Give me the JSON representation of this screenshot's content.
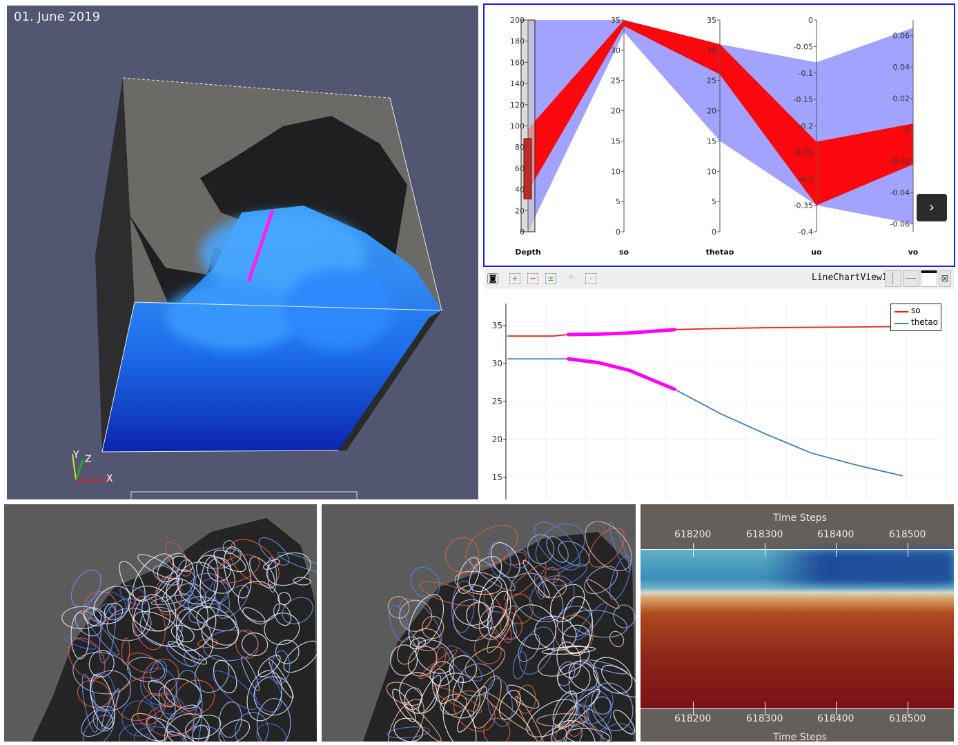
{
  "view3d": {
    "title": "01. June 2019",
    "axes_labels": {
      "x": "X",
      "y": "Y",
      "z": "Z"
    }
  },
  "parallel_coordinates": {
    "axes": [
      {
        "name": "Depth",
        "ticks": [
          0,
          20,
          40,
          60,
          80,
          100,
          120,
          140,
          160,
          180,
          200
        ],
        "range": [
          0,
          200
        ]
      },
      {
        "name": "so",
        "ticks": [
          0,
          5,
          10,
          15,
          20,
          25,
          30,
          35
        ],
        "range": [
          0,
          35
        ]
      },
      {
        "name": "thetao",
        "ticks": [
          0,
          5,
          10,
          15,
          20,
          25,
          30,
          35
        ],
        "range": [
          0,
          35
        ]
      },
      {
        "name": "uo",
        "ticks": [
          0,
          -0.05,
          -0.1,
          -0.15,
          -0.2,
          -0.25,
          -0.3,
          -0.35,
          -0.4
        ],
        "range": [
          -0.4,
          0
        ]
      },
      {
        "name": "vo",
        "ticks": [
          0.06,
          0.04,
          0.02,
          0,
          -0.02,
          -0.04,
          -0.06
        ],
        "range": [
          -0.065,
          0.07
        ]
      }
    ],
    "brush": {
      "axis": "Depth",
      "range": [
        31,
        88
      ]
    },
    "bands": [
      {
        "color": "#5555ff",
        "ranges": [
          [
            0,
            200
          ],
          [
            33,
            35
          ],
          [
            15,
            31
          ],
          [
            -0.35,
            -0.08
          ],
          [
            -0.06,
            0.065
          ]
        ]
      },
      {
        "color": "#ff0000",
        "ranges": [
          [
            38,
            97
          ],
          [
            34,
            35
          ],
          [
            26,
            31
          ],
          [
            -0.35,
            -0.23
          ],
          [
            -0.022,
            0.004
          ]
        ]
      }
    ],
    "next_label": "›"
  },
  "line_chart_view": {
    "title": "LineChartView1",
    "toolbar": [
      "camera-icon",
      "add-selection-icon",
      "subtract-selection-icon",
      "toggle-selection-icon",
      "select-points-icon",
      "clear-selection-icon"
    ],
    "layout_buttons": [
      "split-horizontal-icon",
      "split-vertical-icon",
      "maximize-icon",
      "close-icon"
    ]
  },
  "chart_data": {
    "type": "line",
    "title": "",
    "xlabel": "",
    "ylabel": "",
    "ylim": [
      12.1,
      39.7
    ],
    "xlim": [
      -0.1,
      28.6
    ],
    "yticks": [
      15,
      20,
      25,
      30,
      35
    ],
    "grid": true,
    "legend": "top-right",
    "highlight": {
      "x_range": [
        4,
        11
      ],
      "color": "#ff00ff"
    },
    "series": [
      {
        "name": "so",
        "color": "#e8231d",
        "x": [
          0,
          3,
          4,
          6,
          8,
          11,
          14,
          17,
          20,
          23,
          26
        ],
        "y": [
          33.6,
          33.6,
          33.8,
          33.85,
          34.0,
          34.45,
          34.6,
          34.7,
          34.75,
          34.8,
          34.85
        ]
      },
      {
        "name": "thetao",
        "color": "#3d7ab8",
        "x": [
          0,
          4,
          6,
          8,
          11,
          14,
          17,
          20,
          23,
          26
        ],
        "y": [
          30.6,
          30.6,
          30.1,
          29.1,
          26.6,
          23.4,
          20.7,
          18.2,
          16.6,
          15.2
        ]
      }
    ]
  },
  "time_heatmap": {
    "axis_title": "Time Steps",
    "ticks": [
      "618200",
      "618300",
      "618400",
      "618500"
    ]
  }
}
